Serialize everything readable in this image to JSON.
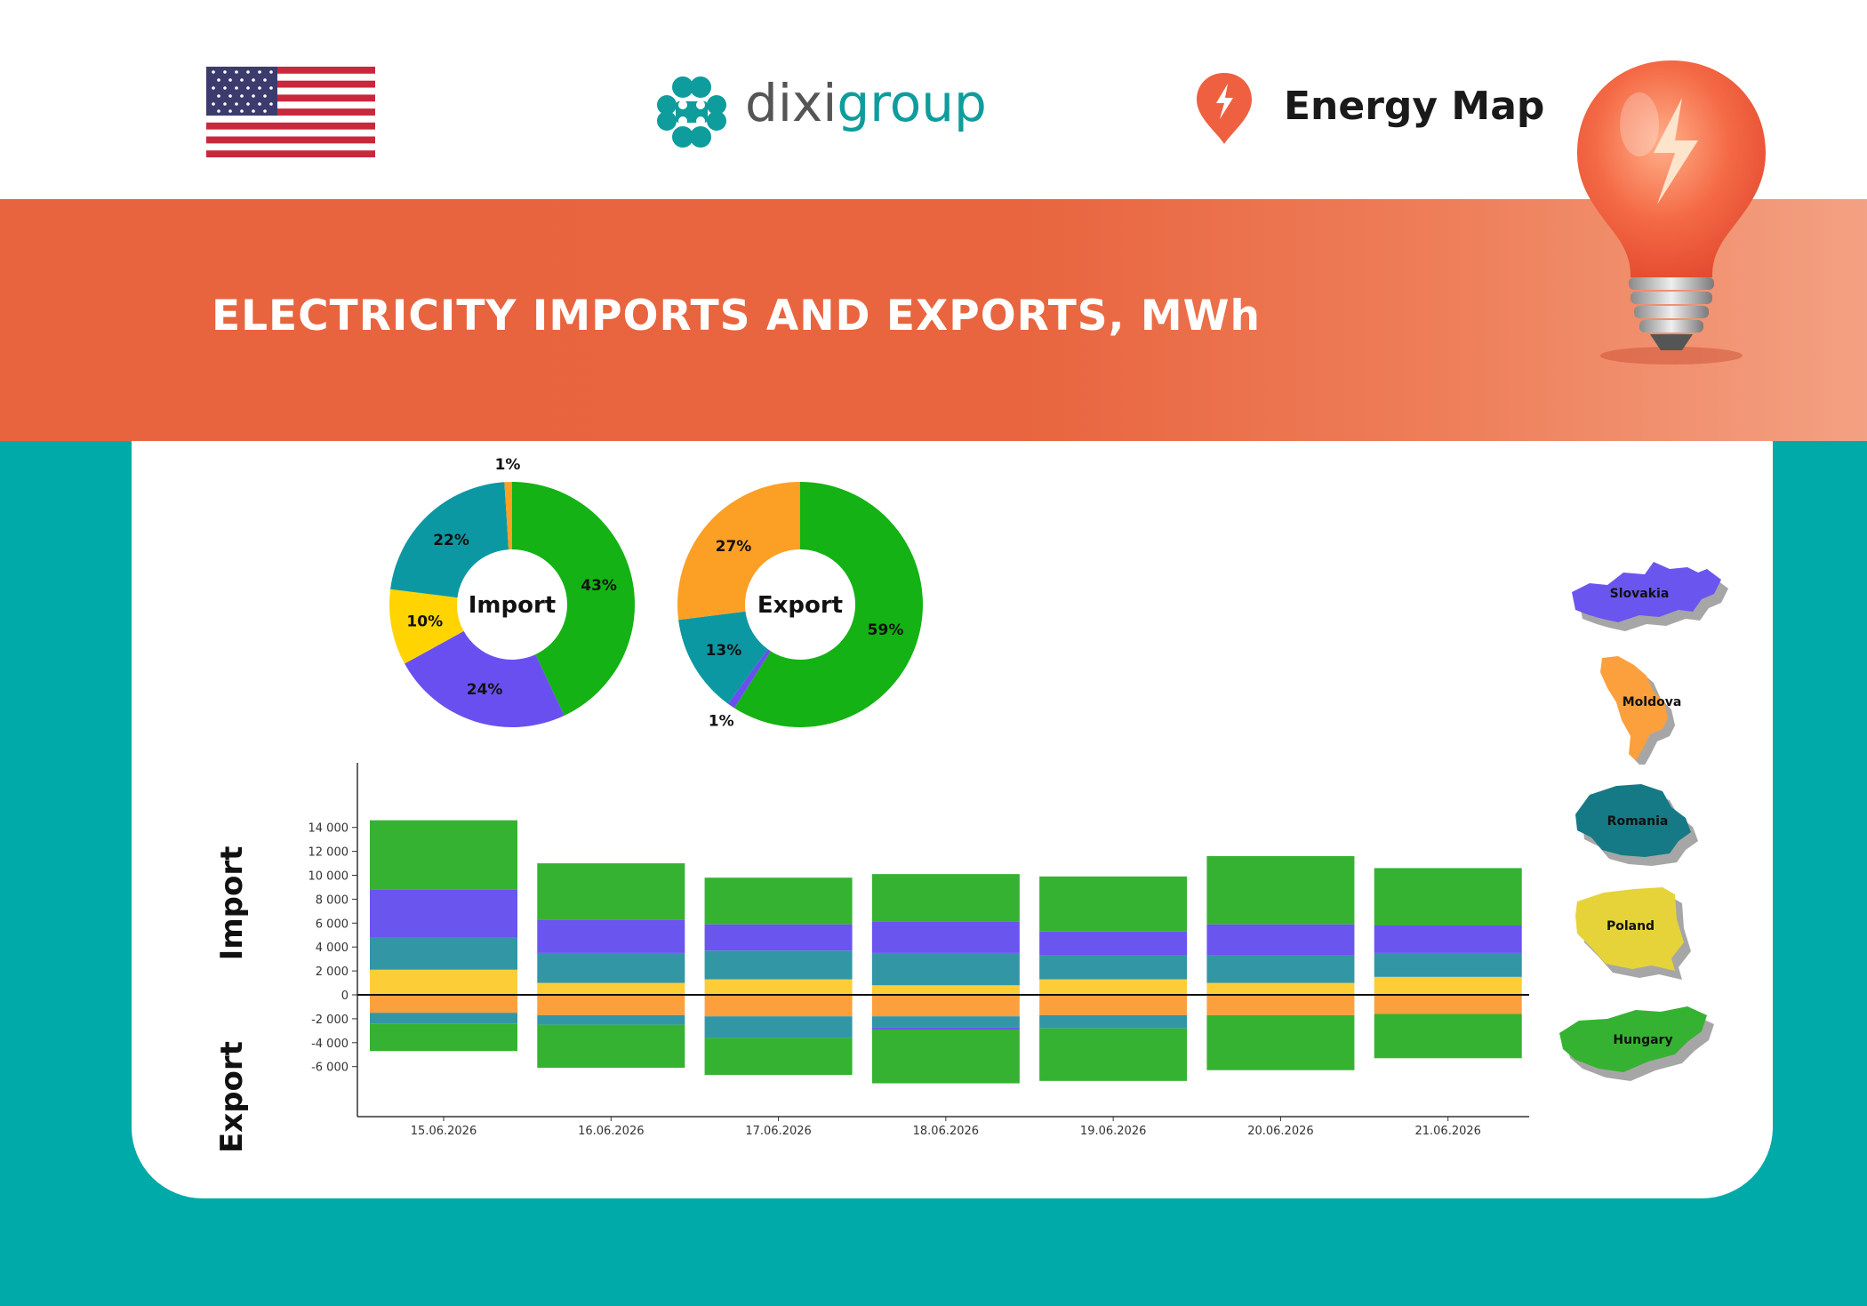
{
  "header": {
    "language_flag": "us-flag-icon",
    "logo_icon": "dixigroup-logo-icon",
    "logo_text_part1": "dixi",
    "logo_text_part2": "group",
    "product_icon": "energy-map-pin-icon",
    "product_name": "Energy Map"
  },
  "banner": {
    "title": "ELECTRICITY IMPORTS AND EXPORTS, MWh",
    "image_icon": "light-bulb-icon"
  },
  "colors": {
    "green": "#36b232",
    "purple": "#6a55ef",
    "teal": "#3296a5",
    "yellow": "#fdcd38",
    "orange": "#fba03d",
    "header_orange": "#e8643f",
    "background_teal": "#00aaa8"
  },
  "legend": {
    "countries": [
      {
        "name": "Slovakia",
        "color": "#6a55ef",
        "icon": "slovakia-map-icon"
      },
      {
        "name": "Moldova",
        "color": "#fba03d",
        "icon": "moldova-map-icon"
      },
      {
        "name": "Romania",
        "color": "#157a85",
        "icon": "romania-map-icon"
      },
      {
        "name": "Poland",
        "color": "#e6d33a",
        "icon": "poland-map-icon"
      },
      {
        "name": "Hungary",
        "color": "#36b232",
        "icon": "hungary-map-icon"
      }
    ]
  },
  "chart_data": [
    {
      "type": "pie",
      "title": "Import",
      "slices": [
        {
          "label": "43%",
          "value": 43,
          "color": "#14b214"
        },
        {
          "label": "24%",
          "value": 24,
          "color": "#6a4ff0"
        },
        {
          "label": "10%",
          "value": 10,
          "color": "#ffd400"
        },
        {
          "label": "22%",
          "value": 22,
          "color": "#0c98a3"
        },
        {
          "label": "1%",
          "value": 1,
          "color": "#fba025"
        }
      ]
    },
    {
      "type": "pie",
      "title": "Export",
      "slices": [
        {
          "label": "59%",
          "value": 59,
          "color": "#14b214"
        },
        {
          "label": "1%",
          "value": 1,
          "color": "#6a4ff0"
        },
        {
          "label": "13%",
          "value": 13,
          "color": "#0c98a3"
        },
        {
          "label": "27%",
          "value": 27,
          "color": "#fba025"
        }
      ]
    },
    {
      "type": "bar",
      "stacked": true,
      "categories": [
        "15.06.2026",
        "16.06.2026",
        "17.06.2026",
        "18.06.2026",
        "19.06.2026",
        "20.06.2026",
        "21.06.2026"
      ],
      "ylim": [
        -7500,
        15000
      ],
      "yticks": [
        14000,
        12000,
        10000,
        8000,
        6000,
        4000,
        2000,
        0,
        -2000,
        -4000,
        -6000
      ],
      "ytick_labels": [
        "14 000",
        "12 000",
        "10 000",
        "8 000",
        "6 000",
        "4 000",
        "2 000",
        "0",
        "-2 000",
        "-4 000",
        "-6 000"
      ],
      "import_axis_label": "Import",
      "export_axis_label": "Export",
      "series": [
        {
          "name": "Poland",
          "group": "import",
          "color": "#fdcd38",
          "values": [
            2100,
            1000,
            1300,
            800,
            1300,
            1000,
            1500
          ]
        },
        {
          "name": "Romania",
          "group": "import",
          "color": "#3296a5",
          "values": [
            2700,
            2500,
            2400,
            2700,
            2000,
            2300,
            2000
          ]
        },
        {
          "name": "Slovakia",
          "group": "import",
          "color": "#6a55ef",
          "values": [
            4000,
            2800,
            2200,
            2600,
            2000,
            2600,
            2300
          ]
        },
        {
          "name": "Hungary",
          "group": "import",
          "color": "#36b232",
          "values": [
            5800,
            4700,
            3900,
            4000,
            4600,
            5700,
            4800
          ]
        },
        {
          "name": "Moldova",
          "group": "export",
          "color": "#fba03d",
          "values": [
            -1500,
            -1700,
            -1800,
            -1800,
            -1700,
            -1700,
            -1600
          ]
        },
        {
          "name": "Romania",
          "group": "export",
          "color": "#3296a5",
          "values": [
            -900,
            -800,
            -1800,
            -900,
            -1100,
            0,
            0
          ]
        },
        {
          "name": "Slovakia",
          "group": "export",
          "color": "#6a55ef",
          "values": [
            0,
            0,
            0,
            -200,
            0,
            0,
            0
          ]
        },
        {
          "name": "Hungary",
          "group": "export",
          "color": "#36b232",
          "values": [
            -2300,
            -3600,
            -3100,
            -4500,
            -4400,
            -4600,
            -3700
          ]
        }
      ]
    }
  ]
}
